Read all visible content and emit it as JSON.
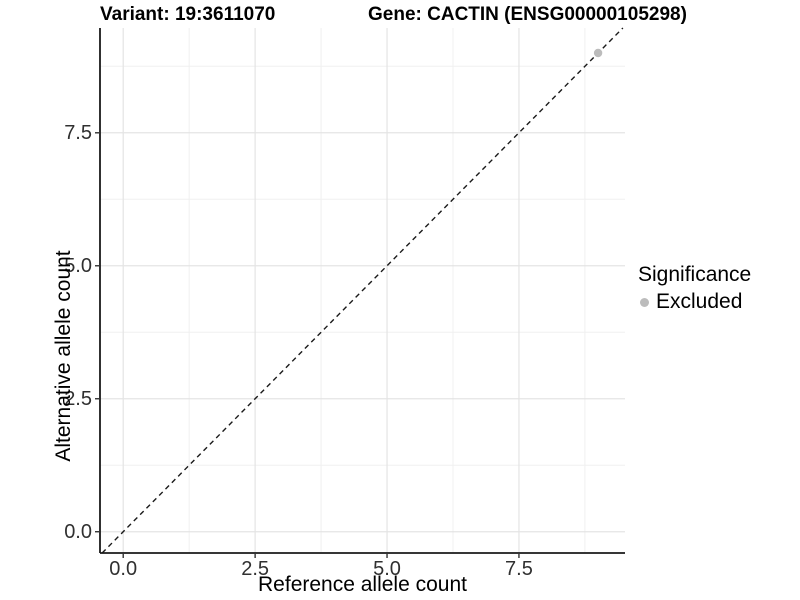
{
  "chart_data": {
    "type": "scatter",
    "title_left": "Variant: 19:3611070",
    "title_right": "Gene: CACTIN (ENSG00000105298)",
    "xlabel": "Reference allele count",
    "ylabel": "Alternative allele count",
    "x_ticks": [
      0.0,
      2.5,
      5.0,
      7.5
    ],
    "x_tick_labels": [
      "0.0",
      "2.5",
      "5.0",
      "7.5"
    ],
    "y_ticks": [
      0.0,
      2.5,
      5.0,
      7.5
    ],
    "y_tick_labels": [
      "0.0",
      "2.5",
      "5.0",
      "7.5"
    ],
    "xlim": [
      -0.44,
      9.51
    ],
    "ylim": [
      -0.4,
      9.47
    ],
    "grid": "major+minor",
    "tick_step": 2.5,
    "reference_line": {
      "kind": "abline",
      "slope": 1,
      "intercept": 0,
      "style": "dashed",
      "color": "#1a1a1a"
    },
    "points": [
      {
        "x": 9,
        "y": 9,
        "series": "Excluded",
        "color": "#bcbcbc"
      }
    ],
    "legend": {
      "title": "Significance",
      "position": "right",
      "entries": [
        {
          "label": "Excluded",
          "color": "#bcbcbc",
          "marker": "circle"
        }
      ]
    },
    "colors": {
      "grid_major": "#e4e4e4",
      "grid_minor": "#f0f0f0",
      "axis_line": "#1a1a1a",
      "tick_mark": "#333333"
    }
  }
}
